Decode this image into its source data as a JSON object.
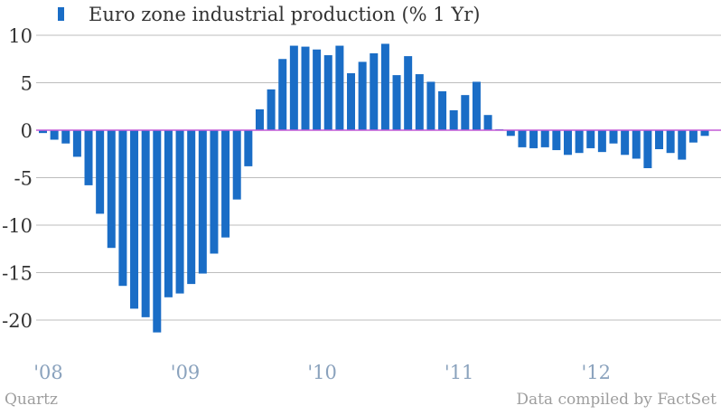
{
  "chart_data": {
    "type": "bar",
    "legend": "Euro zone industrial production (% 1 Yr)",
    "legend_position": "top-left",
    "ylim": [
      -20,
      10
    ],
    "yticks": [
      "10",
      "5",
      "0",
      "-5",
      "-10",
      "-15",
      "-20"
    ],
    "ytick_values": [
      10,
      5,
      0,
      -5,
      -10,
      -15,
      -20
    ],
    "x_start": "2008-01",
    "xticks": [
      "'08",
      "'09",
      "'10",
      "'11",
      "'12"
    ],
    "xtick_months": [
      0,
      12,
      24,
      36,
      48
    ],
    "grid": true,
    "values": [
      -0.3,
      -1.0,
      -1.4,
      -2.8,
      -5.8,
      -8.8,
      -12.4,
      -16.4,
      -18.8,
      -19.7,
      -21.3,
      -17.6,
      -17.2,
      -16.2,
      -15.1,
      -13.0,
      -11.3,
      -7.3,
      -3.8,
      2.2,
      4.3,
      7.5,
      8.9,
      8.8,
      8.5,
      7.9,
      8.9,
      6.0,
      7.2,
      8.1,
      9.1,
      5.8,
      7.8,
      5.9,
      5.1,
      4.1,
      2.1,
      3.7,
      5.1,
      1.6,
      0.1,
      -0.6,
      -1.8,
      -1.9,
      -1.8,
      -2.1,
      -2.6,
      -2.4,
      -1.9,
      -2.3,
      -1.4,
      -2.6,
      -3.0,
      -4.0,
      -2.0,
      -2.4,
      -3.1,
      -1.3,
      -0.6
    ]
  },
  "footer": {
    "source_left": "Quartz",
    "source_right": "Data compiled by FactSet"
  },
  "colors": {
    "bar": "#1a6dc6",
    "zero_line": "#c45ad6",
    "grid": "#bdbdbd",
    "ytick_text": "#333333",
    "xtick_text": "#8aa2bd"
  }
}
